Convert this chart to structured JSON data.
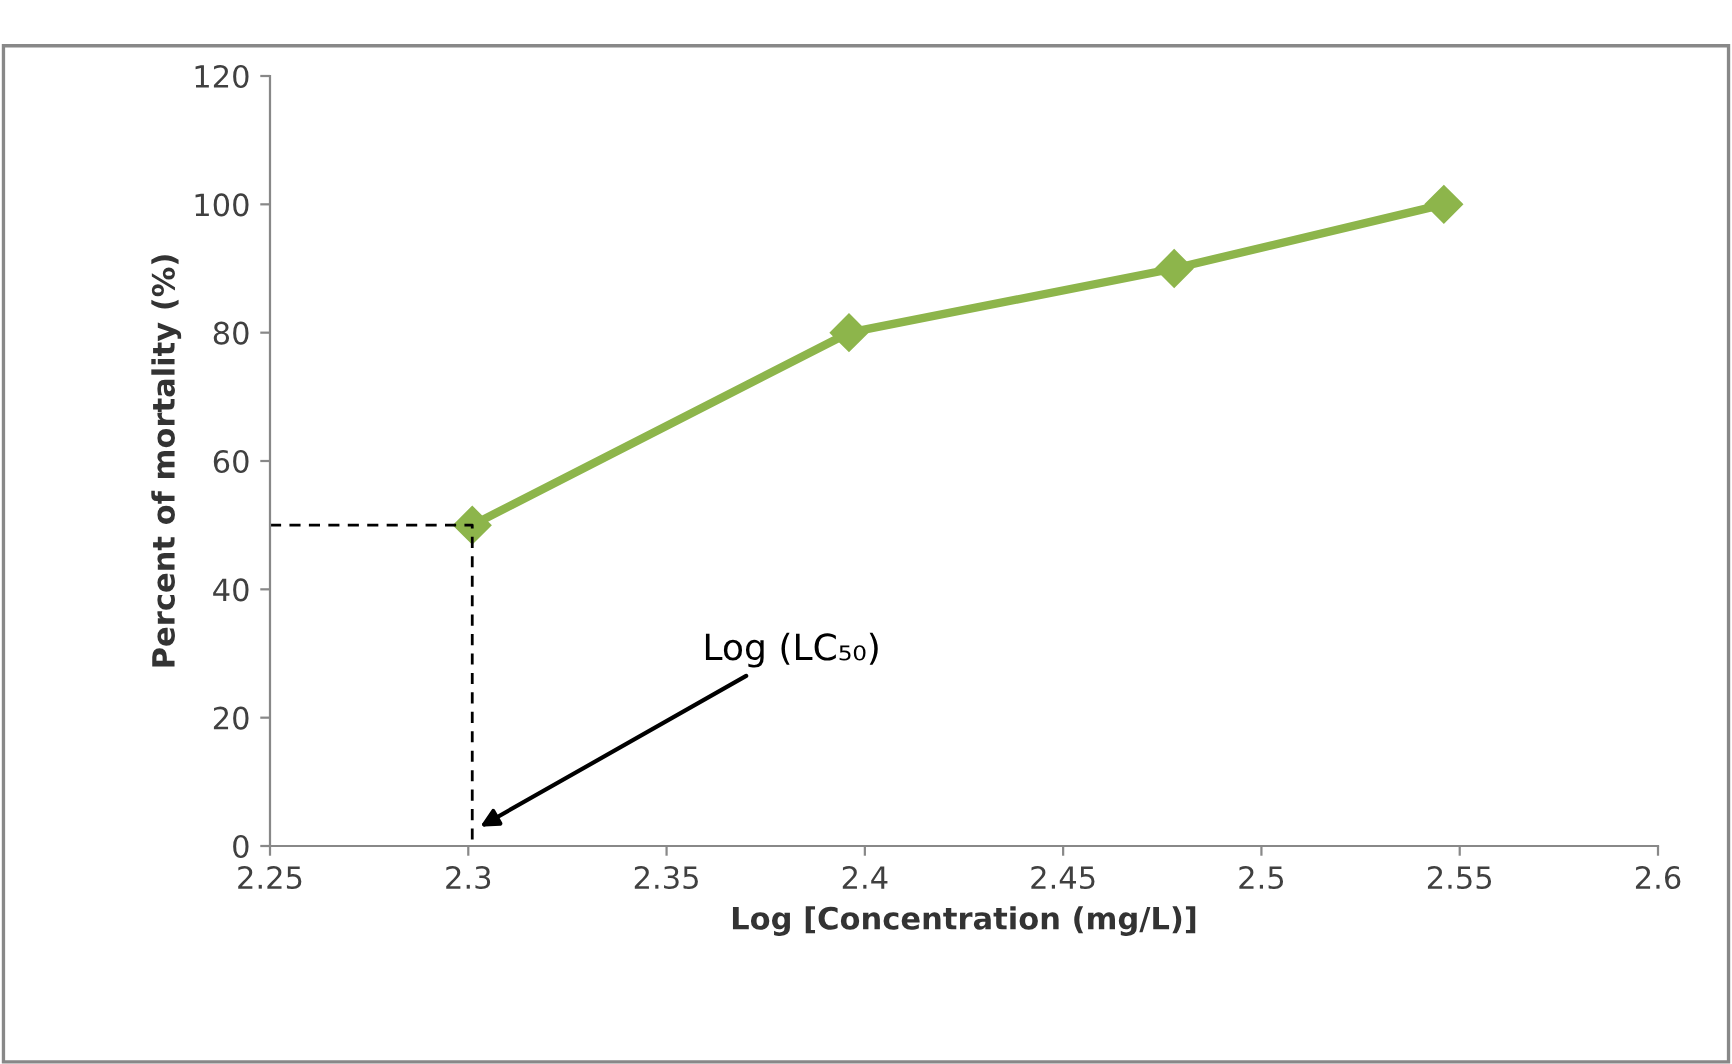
{
  "chart_data": {
    "type": "line",
    "xlabel": "Log [Concentration (mg/L)]",
    "ylabel": "Percent of mortality (%)",
    "series": [
      {
        "color": "#8db54b",
        "x": [
          2.301,
          2.396,
          2.478,
          2.546
        ],
        "values": [
          50,
          80,
          90,
          100
        ],
        "marker": "diamond",
        "line_style": "solid"
      },
      {
        "color": "#000000",
        "x": [
          2.25,
          2.301,
          2.301
        ],
        "values": [
          50,
          50,
          0
        ],
        "marker": "none",
        "line_style": "dashed"
      }
    ],
    "xlim": [
      2.25,
      2.6
    ],
    "xticks": [
      2.25,
      2.3,
      2.35,
      2.4,
      2.45,
      2.5,
      2.55,
      2.6
    ],
    "ylim": [
      0,
      120
    ],
    "yticks": [
      0,
      20,
      40,
      60,
      80,
      100,
      120
    ],
    "grid": false,
    "annotations": [
      {
        "text": "Log (LC₅₀)",
        "x": 2.303,
        "y": 3
      }
    ]
  }
}
